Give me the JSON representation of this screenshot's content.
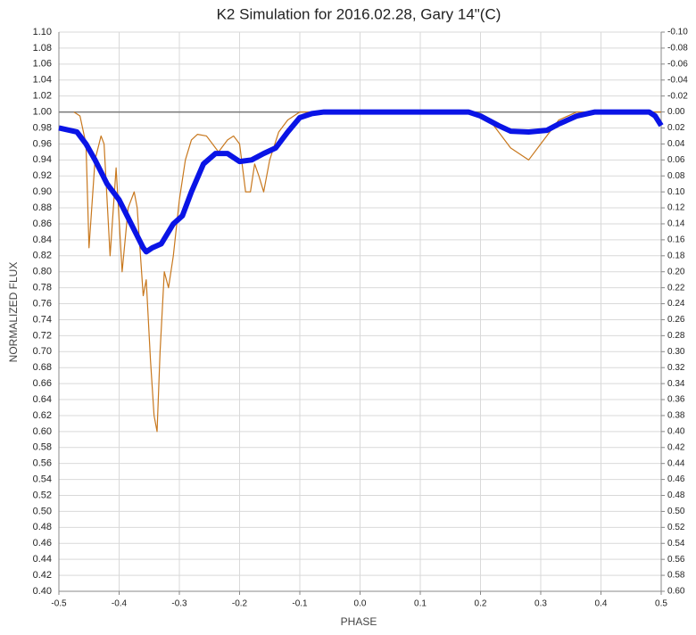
{
  "chart_data": {
    "type": "line",
    "title": "K2 Simulation for 2016.02.28, Gary 14\"(C)",
    "xlabel": "PHASE",
    "ylabel": "NORMALIZED FLUX",
    "xlim": [
      -0.5,
      0.5
    ],
    "ylim": [
      0.4,
      1.1
    ],
    "y2lim": [
      0.6,
      -0.1
    ],
    "grid": true,
    "hline": 1.0,
    "xticks": [
      -0.5,
      -0.4,
      -0.3,
      -0.2,
      -0.1,
      {
        "value": 0,
        "label": "0.0"
      },
      0.1,
      0.2,
      0.3,
      0.4,
      0.5
    ],
    "yticks": [
      {
        "value": 0.4,
        "label": "0.40"
      },
      {
        "value": 0.42,
        "label": "0.42"
      },
      {
        "value": 0.44,
        "label": "0.44"
      },
      {
        "value": 0.46,
        "label": "0.46"
      },
      {
        "value": 0.48,
        "label": "0.48"
      },
      {
        "value": 0.5,
        "label": "0.50"
      },
      {
        "value": 0.52,
        "label": "0.52"
      },
      {
        "value": 0.54,
        "label": "0.54"
      },
      {
        "value": 0.56,
        "label": "0.56"
      },
      {
        "value": 0.58,
        "label": "0.58"
      },
      {
        "value": 0.6,
        "label": "0.60"
      },
      {
        "value": 0.62,
        "label": "0.62"
      },
      {
        "value": 0.64,
        "label": "0.64"
      },
      {
        "value": 0.66,
        "label": "0.66"
      },
      {
        "value": 0.68,
        "label": "0.68"
      },
      {
        "value": 0.7,
        "label": "0.70"
      },
      {
        "value": 0.72,
        "label": "0.72"
      },
      {
        "value": 0.74,
        "label": "0.74"
      },
      {
        "value": 0.76,
        "label": "0.76"
      },
      {
        "value": 0.78,
        "label": "0.78"
      },
      {
        "value": 0.8,
        "label": "0.80"
      },
      {
        "value": 0.82,
        "label": "0.82"
      },
      {
        "value": 0.84,
        "label": "0.84"
      },
      {
        "value": 0.86,
        "label": "0.86"
      },
      {
        "value": 0.88,
        "label": "0.88"
      },
      {
        "value": 0.9,
        "label": "0.90"
      },
      {
        "value": 0.92,
        "label": "0.92"
      },
      {
        "value": 0.94,
        "label": "0.94"
      },
      {
        "value": 0.96,
        "label": "0.96"
      },
      {
        "value": 0.98,
        "label": "0.98"
      },
      {
        "value": 1.0,
        "label": "1.00"
      },
      {
        "value": 1.02,
        "label": "1.02"
      },
      {
        "value": 1.04,
        "label": "1.04"
      },
      {
        "value": 1.06,
        "label": "1.06"
      },
      {
        "value": 1.08,
        "label": "1.08"
      },
      {
        "value": 1.1,
        "label": "1.10"
      }
    ],
    "y2ticks": [
      {
        "value": -0.1,
        "label": "-0.10"
      },
      {
        "value": -0.08,
        "label": "-0.08"
      },
      {
        "value": -0.06,
        "label": "-0.06"
      },
      {
        "value": -0.04,
        "label": "-0.04"
      },
      {
        "value": -0.02,
        "label": "-0.02"
      },
      {
        "value": 0,
        "label": "0.00"
      },
      {
        "value": 0.02,
        "label": "0.02"
      },
      {
        "value": 0.04,
        "label": "0.04"
      },
      {
        "value": 0.06,
        "label": "0.06"
      },
      {
        "value": 0.08,
        "label": "0.08"
      },
      {
        "value": 0.1,
        "label": "0.10"
      },
      {
        "value": 0.12,
        "label": "0.12"
      },
      {
        "value": 0.14,
        "label": "0.14"
      },
      {
        "value": 0.16,
        "label": "0.16"
      },
      {
        "value": 0.18,
        "label": "0.18"
      },
      {
        "value": 0.2,
        "label": "0.20"
      },
      {
        "value": 0.22,
        "label": "0.22"
      },
      {
        "value": 0.24,
        "label": "0.24"
      },
      {
        "value": 0.26,
        "label": "0.26"
      },
      {
        "value": 0.28,
        "label": "0.28"
      },
      {
        "value": 0.3,
        "label": "0.30"
      },
      {
        "value": 0.32,
        "label": "0.32"
      },
      {
        "value": 0.34,
        "label": "0.34"
      },
      {
        "value": 0.36,
        "label": "0.36"
      },
      {
        "value": 0.38,
        "label": "0.38"
      },
      {
        "value": 0.4,
        "label": "0.40"
      },
      {
        "value": 0.42,
        "label": "0.42"
      },
      {
        "value": 0.44,
        "label": "0.44"
      },
      {
        "value": 0.46,
        "label": "0.46"
      },
      {
        "value": 0.48,
        "label": "0.48"
      },
      {
        "value": 0.5,
        "label": "0.50"
      },
      {
        "value": 0.52,
        "label": "0.52"
      },
      {
        "value": 0.54,
        "label": "0.54"
      },
      {
        "value": 0.56,
        "label": "0.56"
      },
      {
        "value": 0.58,
        "label": "0.58"
      },
      {
        "value": 0.6,
        "label": "0.60"
      }
    ],
    "series": [
      {
        "color": "#c8781e",
        "width": 1.2,
        "x": [
          -0.475,
          -0.465,
          -0.455,
          -0.45,
          -0.44,
          -0.43,
          -0.425,
          -0.415,
          -0.405,
          -0.395,
          -0.385,
          -0.375,
          -0.37,
          -0.36,
          -0.355,
          -0.348,
          -0.342,
          -0.337,
          -0.332,
          -0.325,
          -0.318,
          -0.31,
          -0.3,
          -0.29,
          -0.28,
          -0.27,
          -0.255,
          -0.245,
          -0.235,
          -0.22,
          -0.21,
          -0.2,
          -0.19,
          -0.182,
          -0.175,
          -0.168,
          -0.16,
          -0.15,
          -0.135,
          -0.12,
          -0.1,
          -0.09,
          0.18,
          0.2,
          0.22,
          0.25,
          0.28,
          0.3,
          0.33,
          0.36,
          0.5
        ],
        "values": [
          1.0,
          0.995,
          0.96,
          0.83,
          0.94,
          0.97,
          0.96,
          0.82,
          0.93,
          0.8,
          0.88,
          0.9,
          0.88,
          0.77,
          0.79,
          0.69,
          0.62,
          0.6,
          0.7,
          0.8,
          0.78,
          0.82,
          0.89,
          0.94,
          0.965,
          0.972,
          0.97,
          0.96,
          0.95,
          0.965,
          0.97,
          0.96,
          0.9,
          0.9,
          0.935,
          0.92,
          0.9,
          0.94,
          0.975,
          0.99,
          1.0,
          1.0,
          1.0,
          0.998,
          0.985,
          0.955,
          0.94,
          0.96,
          0.99,
          1.0,
          1.0
        ]
      },
      {
        "color": "#0a14e6",
        "width": 6,
        "x": [
          -0.5,
          -0.47,
          -0.455,
          -0.44,
          -0.42,
          -0.4,
          -0.38,
          -0.36,
          -0.355,
          -0.345,
          -0.33,
          -0.31,
          -0.295,
          -0.28,
          -0.26,
          -0.24,
          -0.22,
          -0.2,
          -0.18,
          -0.16,
          -0.14,
          -0.12,
          -0.1,
          -0.08,
          -0.06,
          0.18,
          0.2,
          0.23,
          0.25,
          0.28,
          0.31,
          0.33,
          0.36,
          0.39,
          0.48,
          0.49,
          0.5
        ],
        "values": [
          0.98,
          0.975,
          0.96,
          0.94,
          0.91,
          0.89,
          0.86,
          0.83,
          0.825,
          0.83,
          0.835,
          0.86,
          0.87,
          0.9,
          0.935,
          0.948,
          0.948,
          0.938,
          0.94,
          0.948,
          0.955,
          0.975,
          0.993,
          0.998,
          1.0,
          1.0,
          0.995,
          0.983,
          0.976,
          0.975,
          0.977,
          0.985,
          0.995,
          1.0,
          1.0,
          0.995,
          0.983
        ]
      }
    ]
  }
}
